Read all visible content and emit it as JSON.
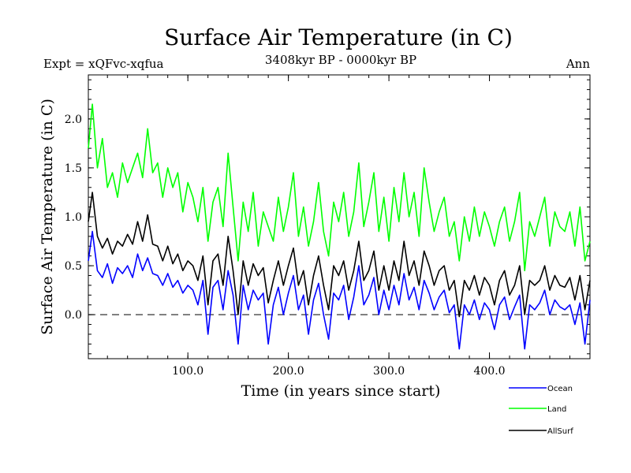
{
  "chart_data": {
    "type": "line",
    "title": "Surface Air Temperature (in C)",
    "subtitle_left": "Expt = xQFvc-xqfua",
    "subtitle_center": "3408kyr BP - 0000kyr BP",
    "subtitle_right": "Ann",
    "xlabel": "Time (in years since start)",
    "ylabel": "Surface Air Temperature (in C)",
    "xlim": [
      1,
      500
    ],
    "ylim": [
      -0.45,
      2.45
    ],
    "xticks": [
      100,
      200,
      300,
      400
    ],
    "xtick_labels": [
      "100.0",
      "200.0",
      "300.0",
      "400.0"
    ],
    "yticks": [
      0,
      0.5,
      1,
      1.5,
      2
    ],
    "ytick_labels": [
      "0.0",
      "0.5",
      "1.0",
      "1.5",
      "2.0"
    ],
    "reference_line": {
      "y": 0,
      "style": "dashed"
    },
    "series": [
      {
        "name": "Ocean",
        "color": "#0000ff",
        "x": [
          1,
          5,
          10,
          15,
          20,
          25,
          30,
          35,
          40,
          45,
          50,
          55,
          60,
          65,
          70,
          75,
          80,
          85,
          90,
          95,
          100,
          105,
          110,
          115,
          120,
          125,
          130,
          135,
          140,
          145,
          150,
          155,
          160,
          165,
          170,
          175,
          180,
          185,
          190,
          195,
          200,
          205,
          210,
          215,
          220,
          225,
          230,
          235,
          240,
          245,
          250,
          255,
          260,
          265,
          270,
          275,
          280,
          285,
          290,
          295,
          300,
          305,
          310,
          315,
          320,
          325,
          330,
          335,
          340,
          345,
          350,
          355,
          360,
          365,
          370,
          375,
          380,
          385,
          390,
          395,
          400,
          405,
          410,
          415,
          420,
          425,
          430,
          435,
          440,
          445,
          450,
          455,
          460,
          465,
          470,
          475,
          480,
          485,
          490,
          495,
          500
        ],
        "values": [
          0.55,
          0.85,
          0.45,
          0.38,
          0.52,
          0.32,
          0.48,
          0.42,
          0.5,
          0.38,
          0.62,
          0.45,
          0.58,
          0.42,
          0.4,
          0.3,
          0.42,
          0.28,
          0.35,
          0.22,
          0.3,
          0.25,
          0.1,
          0.35,
          -0.2,
          0.28,
          0.35,
          0.05,
          0.45,
          0.2,
          -0.3,
          0.3,
          0.05,
          0.25,
          0.15,
          0.22,
          -0.3,
          0.1,
          0.28,
          0.0,
          0.22,
          0.4,
          0.05,
          0.2,
          -0.2,
          0.15,
          0.32,
          0.0,
          -0.25,
          0.22,
          0.15,
          0.3,
          -0.05,
          0.18,
          0.5,
          0.1,
          0.2,
          0.38,
          0.0,
          0.25,
          0.05,
          0.3,
          0.1,
          0.42,
          0.15,
          0.28,
          0.05,
          0.35,
          0.22,
          0.05,
          0.18,
          0.25,
          0.02,
          0.1,
          -0.35,
          0.1,
          0.0,
          0.15,
          -0.05,
          0.12,
          0.05,
          -0.15,
          0.1,
          0.18,
          -0.05,
          0.08,
          0.2,
          -0.35,
          0.1,
          0.05,
          0.12,
          0.25,
          0.0,
          0.15,
          0.08,
          0.05,
          0.1,
          -0.1,
          0.12,
          -0.3,
          0.15
        ]
      },
      {
        "name": "Land",
        "color": "#00ff00",
        "x": [
          1,
          5,
          10,
          15,
          20,
          25,
          30,
          35,
          40,
          45,
          50,
          55,
          60,
          65,
          70,
          75,
          80,
          85,
          90,
          95,
          100,
          105,
          110,
          115,
          120,
          125,
          130,
          135,
          140,
          145,
          150,
          155,
          160,
          165,
          170,
          175,
          180,
          185,
          190,
          195,
          200,
          205,
          210,
          215,
          220,
          225,
          230,
          235,
          240,
          245,
          250,
          255,
          260,
          265,
          270,
          275,
          280,
          285,
          290,
          295,
          300,
          305,
          310,
          315,
          320,
          325,
          330,
          335,
          340,
          345,
          350,
          355,
          360,
          365,
          370,
          375,
          380,
          385,
          390,
          395,
          400,
          405,
          410,
          415,
          420,
          425,
          430,
          435,
          440,
          445,
          450,
          455,
          460,
          465,
          470,
          475,
          480,
          485,
          490,
          495,
          500
        ],
        "values": [
          1.7,
          2.15,
          1.5,
          1.8,
          1.3,
          1.45,
          1.2,
          1.55,
          1.35,
          1.5,
          1.65,
          1.4,
          1.9,
          1.45,
          1.55,
          1.2,
          1.5,
          1.3,
          1.45,
          1.05,
          1.35,
          1.2,
          0.95,
          1.3,
          0.75,
          1.15,
          1.3,
          0.9,
          1.65,
          1.1,
          0.55,
          1.15,
          0.85,
          1.25,
          0.7,
          1.05,
          0.9,
          0.75,
          1.2,
          0.85,
          1.1,
          1.45,
          0.8,
          1.1,
          0.7,
          0.95,
          1.35,
          0.85,
          0.6,
          1.15,
          0.95,
          1.25,
          0.8,
          1.05,
          1.55,
          0.9,
          1.15,
          1.45,
          0.85,
          1.2,
          0.75,
          1.3,
          0.95,
          1.45,
          1.0,
          1.25,
          0.8,
          1.5,
          1.15,
          0.85,
          1.05,
          1.2,
          0.8,
          0.95,
          0.55,
          1.0,
          0.75,
          1.1,
          0.8,
          1.05,
          0.9,
          0.7,
          0.95,
          1.1,
          0.75,
          0.95,
          1.25,
          0.45,
          0.95,
          0.8,
          1.0,
          1.2,
          0.7,
          1.05,
          0.9,
          0.85,
          1.05,
          0.7,
          1.1,
          0.55,
          0.75
        ]
      },
      {
        "name": "AllSurf",
        "color": "#000000",
        "x": [
          1,
          5,
          10,
          15,
          20,
          25,
          30,
          35,
          40,
          45,
          50,
          55,
          60,
          65,
          70,
          75,
          80,
          85,
          90,
          95,
          100,
          105,
          110,
          115,
          120,
          125,
          130,
          135,
          140,
          145,
          150,
          155,
          160,
          165,
          170,
          175,
          180,
          185,
          190,
          195,
          200,
          205,
          210,
          215,
          220,
          225,
          230,
          235,
          240,
          245,
          250,
          255,
          260,
          265,
          270,
          275,
          280,
          285,
          290,
          295,
          300,
          305,
          310,
          315,
          320,
          325,
          330,
          335,
          340,
          345,
          350,
          355,
          360,
          365,
          370,
          375,
          380,
          385,
          390,
          395,
          400,
          405,
          410,
          415,
          420,
          425,
          430,
          435,
          440,
          445,
          450,
          455,
          460,
          465,
          470,
          475,
          480,
          485,
          490,
          495,
          500
        ],
        "values": [
          0.95,
          1.25,
          0.8,
          0.68,
          0.78,
          0.62,
          0.75,
          0.7,
          0.82,
          0.72,
          0.95,
          0.75,
          1.02,
          0.72,
          0.7,
          0.55,
          0.7,
          0.52,
          0.62,
          0.45,
          0.55,
          0.5,
          0.35,
          0.6,
          0.1,
          0.55,
          0.62,
          0.3,
          0.8,
          0.45,
          0.0,
          0.55,
          0.3,
          0.52,
          0.4,
          0.48,
          0.12,
          0.35,
          0.55,
          0.3,
          0.5,
          0.68,
          0.3,
          0.45,
          0.1,
          0.4,
          0.6,
          0.3,
          0.05,
          0.5,
          0.4,
          0.55,
          0.25,
          0.45,
          0.75,
          0.35,
          0.45,
          0.65,
          0.25,
          0.5,
          0.25,
          0.55,
          0.35,
          0.75,
          0.4,
          0.55,
          0.3,
          0.65,
          0.5,
          0.3,
          0.45,
          0.5,
          0.25,
          0.35,
          -0.02,
          0.35,
          0.25,
          0.4,
          0.2,
          0.38,
          0.3,
          0.1,
          0.35,
          0.45,
          0.2,
          0.3,
          0.5,
          0.0,
          0.35,
          0.3,
          0.35,
          0.5,
          0.25,
          0.4,
          0.3,
          0.28,
          0.38,
          0.15,
          0.4,
          0.05,
          0.35
        ]
      }
    ],
    "legend": {
      "position": "bottom-right",
      "entries": [
        "Ocean",
        "Land",
        "AllSurf"
      ]
    }
  }
}
